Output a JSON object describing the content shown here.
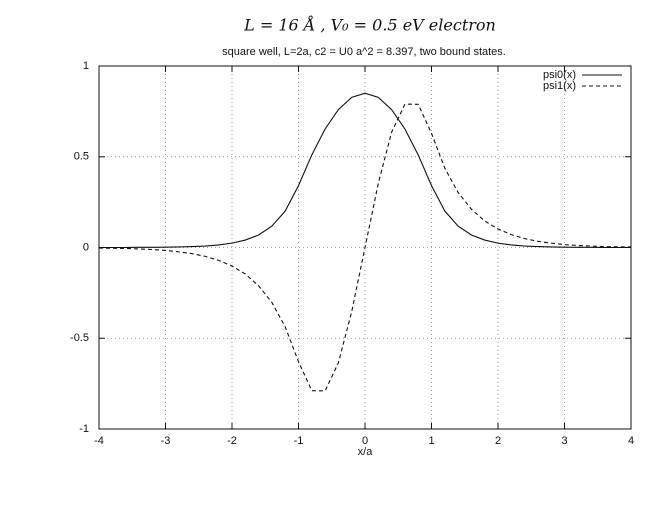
{
  "chart_data": {
    "type": "line",
    "annotation": "L = 16 Å ,  V₀ = 0.5 eV  electron",
    "title": "square well, L=2a, c2 = U0 a^2 = 8.397, two bound states.",
    "xlabel": "x/a",
    "x": [
      -4,
      -3.8,
      -3.6,
      -3.4,
      -3.2,
      -3,
      -2.8,
      -2.6,
      -2.4,
      -2.2,
      -2,
      -1.8,
      -1.6,
      -1.4,
      -1.2,
      -1,
      -0.8,
      -0.6,
      -0.4,
      -0.2,
      0,
      0.2,
      0.4,
      0.6,
      0.8,
      1,
      1.2,
      1.4,
      1.6,
      1.8,
      2,
      2.2,
      2.4,
      2.6,
      2.8,
      3,
      3.2,
      3.4,
      3.6,
      3.8,
      4
    ],
    "series": [
      {
        "name": "psi0(x)",
        "color": "#111111",
        "dashed": false,
        "values": [
          0,
          0,
          0,
          0.001,
          0.001,
          0.002,
          0.003,
          0.005,
          0.008,
          0.014,
          0.024,
          0.041,
          0.069,
          0.118,
          0.201,
          0.341,
          0.51,
          0.653,
          0.76,
          0.827,
          0.85,
          0.827,
          0.76,
          0.653,
          0.51,
          0.341,
          0.201,
          0.118,
          0.069,
          0.041,
          0.024,
          0.014,
          0.008,
          0.005,
          0.003,
          0.002,
          0.001,
          0.001,
          0,
          0,
          0
        ]
      },
      {
        "name": "psi1(x)",
        "color": "#111111",
        "dashed": true,
        "values": [
          -0.003,
          -0.004,
          -0.005,
          -0.008,
          -0.011,
          -0.016,
          -0.024,
          -0.034,
          -0.049,
          -0.071,
          -0.102,
          -0.146,
          -0.211,
          -0.303,
          -0.437,
          -0.629,
          -0.789,
          -0.79,
          -0.635,
          -0.353,
          0,
          0.353,
          0.635,
          0.79,
          0.789,
          0.629,
          0.437,
          0.303,
          0.211,
          0.146,
          0.102,
          0.071,
          0.049,
          0.034,
          0.024,
          0.016,
          0.011,
          0.008,
          0.005,
          0.004,
          0.003
        ]
      }
    ],
    "xlim": [
      -4,
      4
    ],
    "ylim": [
      -1,
      1
    ],
    "xticks": [
      -4,
      -3,
      -2,
      -1,
      0,
      1,
      2,
      3,
      4
    ],
    "yticks": [
      -1,
      -0.5,
      0,
      0.5,
      1
    ],
    "grid": true,
    "legend": "top-right"
  }
}
